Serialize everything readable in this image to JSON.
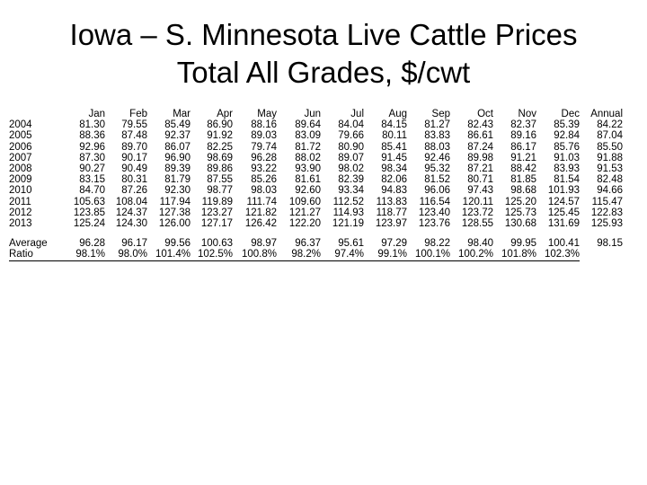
{
  "slide": {
    "title_line1": "Iowa – S. Minnesota Live Cattle Prices",
    "title_line2": "Total All Grades, $/cwt"
  },
  "table": {
    "columns": [
      "Jan",
      "Feb",
      "Mar",
      "Apr",
      "May",
      "Jun",
      "Jul",
      "Aug",
      "Sep",
      "Oct",
      "Nov",
      "Dec",
      "Annual"
    ],
    "rows": [
      {
        "label": "2004",
        "values": [
          "81.30",
          "79.55",
          "85.49",
          "86.90",
          "88.16",
          "89.64",
          "84.04",
          "84.15",
          "81.27",
          "82.43",
          "82.37",
          "85.39",
          "84.22"
        ]
      },
      {
        "label": "2005",
        "values": [
          "88.36",
          "87.48",
          "92.37",
          "91.92",
          "89.03",
          "83.09",
          "79.66",
          "80.11",
          "83.83",
          "86.61",
          "89.16",
          "92.84",
          "87.04"
        ]
      },
      {
        "label": "2006",
        "values": [
          "92.96",
          "89.70",
          "86.07",
          "82.25",
          "79.74",
          "81.72",
          "80.90",
          "85.41",
          "88.03",
          "87.24",
          "86.17",
          "85.76",
          "85.50"
        ]
      },
      {
        "label": "2007",
        "values": [
          "87.30",
          "90.17",
          "96.90",
          "98.69",
          "96.28",
          "88.02",
          "89.07",
          "91.45",
          "92.46",
          "89.98",
          "91.21",
          "91.03",
          "91.88"
        ]
      },
      {
        "label": "2008",
        "values": [
          "90.27",
          "90.49",
          "89.39",
          "89.86",
          "93.22",
          "93.90",
          "98.02",
          "98.34",
          "95.32",
          "87.21",
          "88.42",
          "83.93",
          "91.53"
        ]
      },
      {
        "label": "2009",
        "values": [
          "83.15",
          "80.31",
          "81.79",
          "87.55",
          "85.26",
          "81.61",
          "82.39",
          "82.06",
          "81.52",
          "80.71",
          "81.85",
          "81.54",
          "82.48"
        ]
      },
      {
        "label": "2010",
        "values": [
          "84.70",
          "87.26",
          "92.30",
          "98.77",
          "98.03",
          "92.60",
          "93.34",
          "94.83",
          "96.06",
          "97.43",
          "98.68",
          "101.93",
          "94.66"
        ]
      },
      {
        "label": "2011",
        "values": [
          "105.63",
          "108.04",
          "117.94",
          "119.89",
          "111.74",
          "109.60",
          "112.52",
          "113.83",
          "116.54",
          "120.11",
          "125.20",
          "124.57",
          "115.47"
        ]
      },
      {
        "label": "2012",
        "values": [
          "123.85",
          "124.37",
          "127.38",
          "123.27",
          "121.82",
          "121.27",
          "114.93",
          "118.77",
          "123.40",
          "123.72",
          "125.73",
          "125.45",
          "122.83"
        ]
      },
      {
        "label": "2013",
        "values": [
          "125.24",
          "124.30",
          "126.00",
          "127.17",
          "126.42",
          "122.20",
          "121.19",
          "123.97",
          "123.76",
          "128.55",
          "130.68",
          "131.69",
          "125.93"
        ]
      }
    ],
    "summary": [
      {
        "label": "Average",
        "values": [
          "96.28",
          "96.17",
          "99.56",
          "100.63",
          "98.97",
          "96.37",
          "95.61",
          "97.29",
          "98.22",
          "98.40",
          "99.95",
          "100.41",
          "98.15"
        ]
      },
      {
        "label": "Ratio",
        "values": [
          "98.1%",
          "98.0%",
          "101.4%",
          "102.5%",
          "100.8%",
          "98.2%",
          "97.4%",
          "99.1%",
          "100.1%",
          "100.2%",
          "101.8%",
          "102.3%",
          ""
        ]
      }
    ]
  }
}
